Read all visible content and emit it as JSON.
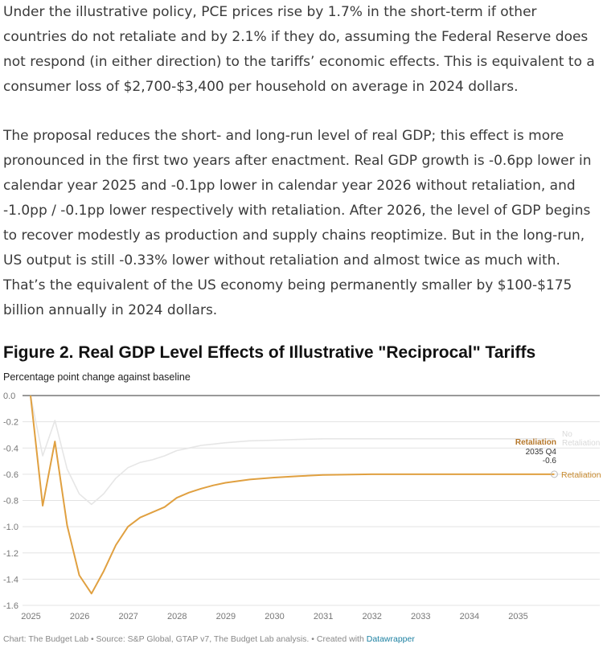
{
  "article": {
    "paragraph_1": "Under the illustrative policy, PCE prices rise by 1.7% in the short-term if other countries do not retaliate and by 2.1% if they do, assuming the Federal Reserve does not respond (in either direction) to the tariffs’ economic effects. This is equivalent to a consumer loss of $2,700-$3,400 per household on average in 2024 dollars.",
    "paragraph_2": "The proposal reduces the short- and long-run level of real GDP; this effect is more pronounced in the first two years after enactment. Real GDP growth is -0.6pp lower in calendar year 2025 and -0.1pp lower in calendar year 2026 without retaliation, and -1.0pp / -0.1pp lower respectively with retaliation. After 2026, the level of GDP begins to recover modestly as production and supply chains reoptimize. But in the long-run, US output is still -0.33% lower without retaliation and almost twice as much with. That’s the equivalent of the US economy being permanently smaller by $100-$175 billion annually in 2024 dollars."
  },
  "figure": {
    "title": "Figure 2. Real GDP Level Effects of Illustrative \"Reciprocal\" Tariffs",
    "subtitle": "Percentage point change against baseline"
  },
  "footer": {
    "prefix": "Chart: The Budget Lab • Source: S&P Global, GTAP v7, The Budget Lab analysis. • Created with ",
    "link_text": "Datawrapper"
  },
  "chart_data": {
    "type": "line",
    "ylim": [
      -1.6,
      0.0
    ],
    "xlim": [
      2025,
      2036
    ],
    "y_ticks": [
      "0.0",
      "-0.2",
      "-0.4",
      "-0.6",
      "-0.8",
      "-1.0",
      "-1.2",
      "-1.4",
      "-1.6"
    ],
    "x_ticks": [
      "2025",
      "2026",
      "2027",
      "2028",
      "2029",
      "2030",
      "2031",
      "2032",
      "2033",
      "2034",
      "2035"
    ],
    "grid": true,
    "series": [
      {
        "name": "No Retaliation",
        "color": "#e6e6e6",
        "x": [
          2025.0,
          2025.25,
          2025.5,
          2025.75,
          2026.0,
          2026.25,
          2026.5,
          2026.75,
          2027.0,
          2027.25,
          2027.5,
          2027.75,
          2028.0,
          2028.25,
          2028.5,
          2028.75,
          2029.0,
          2029.5,
          2030.0,
          2030.5,
          2031.0,
          2032.0,
          2033.0,
          2034.0,
          2035.0,
          2035.75
        ],
        "y": [
          0.0,
          -0.46,
          -0.19,
          -0.56,
          -0.75,
          -0.83,
          -0.75,
          -0.63,
          -0.55,
          -0.51,
          -0.49,
          -0.46,
          -0.42,
          -0.4,
          -0.38,
          -0.37,
          -0.36,
          -0.345,
          -0.34,
          -0.335,
          -0.33,
          -0.33,
          -0.33,
          -0.33,
          -0.33,
          -0.33
        ]
      },
      {
        "name": "Retaliation",
        "color": "#e0a040",
        "x": [
          2025.0,
          2025.25,
          2025.5,
          2025.75,
          2026.0,
          2026.25,
          2026.5,
          2026.75,
          2027.0,
          2027.25,
          2027.5,
          2027.75,
          2028.0,
          2028.25,
          2028.5,
          2028.75,
          2029.0,
          2029.5,
          2030.0,
          2030.5,
          2031.0,
          2032.0,
          2033.0,
          2034.0,
          2035.0,
          2035.75
        ],
        "y": [
          0.0,
          -0.84,
          -0.35,
          -0.99,
          -1.37,
          -1.51,
          -1.34,
          -1.14,
          -1.0,
          -0.93,
          -0.89,
          -0.85,
          -0.78,
          -0.74,
          -0.71,
          -0.685,
          -0.665,
          -0.64,
          -0.625,
          -0.615,
          -0.605,
          -0.6,
          -0.6,
          -0.6,
          -0.6,
          -0.6
        ]
      }
    ],
    "tooltip": {
      "series": "Retaliation",
      "period": "2035 Q4",
      "value": "-0.6"
    },
    "end_labels": [
      "No Retaliation",
      "Retaliation"
    ]
  }
}
